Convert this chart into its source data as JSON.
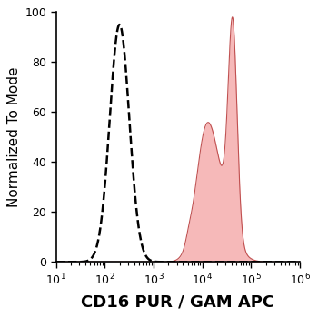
{
  "xlabel": "CD16 PUR / GAM APC",
  "ylabel": "Normalized To Mode",
  "xlim_log": [
    1,
    6
  ],
  "ylim": [
    0,
    100
  ],
  "yticks": [
    0,
    20,
    40,
    60,
    80,
    100
  ],
  "background_color": "#ffffff",
  "dashed_peak_log10": 2.3,
  "dashed_sigma_log10": 0.2,
  "dashed_color": "#000000",
  "filled_peak_log10": 4.62,
  "filled_sigma_log10": 0.09,
  "filled_color": "#f08080",
  "filled_alpha": 0.55,
  "filled_edge_color": "#c05050",
  "filled_edge_width": 0.8,
  "xlabel_fontsize": 13,
  "ylabel_fontsize": 11,
  "tick_fontsize": 9,
  "xlabel_fontweight": "bold",
  "dashed_linewidth": 1.8,
  "shoulder_peak_log10": 4.05,
  "shoulder_sigma_log10": 0.2,
  "shoulder_amplitude": 0.42,
  "broad_base_peak_log10": 4.3,
  "broad_base_sigma_log10": 0.28,
  "broad_base_amplitude": 0.35,
  "small_bump_peak_log10": 3.72,
  "small_bump_sigma_log10": 0.06,
  "small_bump_amplitude": 0.03
}
